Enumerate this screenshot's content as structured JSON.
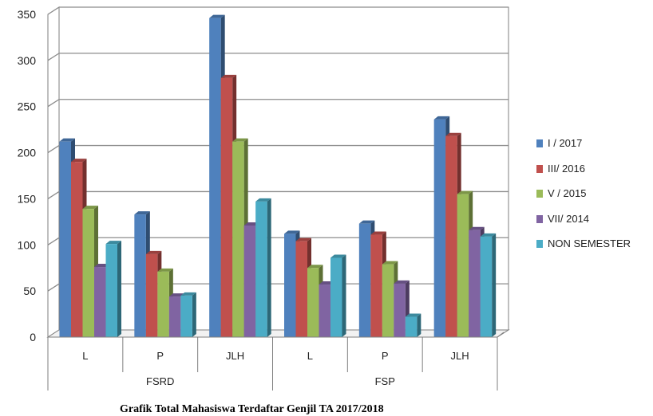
{
  "chart_data": {
    "type": "bar",
    "groups": [
      {
        "label": "FSRD",
        "categories": [
          "L",
          "P",
          "JLH"
        ]
      },
      {
        "label": "FSP",
        "categories": [
          "L",
          "P",
          "JLH"
        ]
      }
    ],
    "categories": [
      "L",
      "P",
      "JLH",
      "L",
      "P",
      "JLH"
    ],
    "series": [
      {
        "name": "I / 2017",
        "color": "#4F81BD",
        "values": [
          212,
          133,
          346,
          112,
          123,
          236
        ]
      },
      {
        "name": "III/ 2016",
        "color": "#C0504D",
        "values": [
          190,
          90,
          281,
          104,
          111,
          218
        ]
      },
      {
        "name": "V / 2015",
        "color": "#9BBB59",
        "values": [
          139,
          71,
          212,
          75,
          79,
          155
        ]
      },
      {
        "name": "VII/ 2014",
        "color": "#8064A2",
        "values": [
          76,
          44,
          121,
          57,
          58,
          116
        ]
      },
      {
        "name": "NON SEMESTER",
        "color": "#4BACC6",
        "values": [
          101,
          45,
          147,
          86,
          22,
          109
        ]
      }
    ],
    "ylim": [
      0,
      350
    ],
    "yticks": [
      0,
      50,
      100,
      150,
      200,
      250,
      300,
      350
    ],
    "grid": true,
    "legend_position": "right"
  },
  "caption": "Grafik Total Mahasiswa Terdaftar Genjil TA 2017/2018"
}
